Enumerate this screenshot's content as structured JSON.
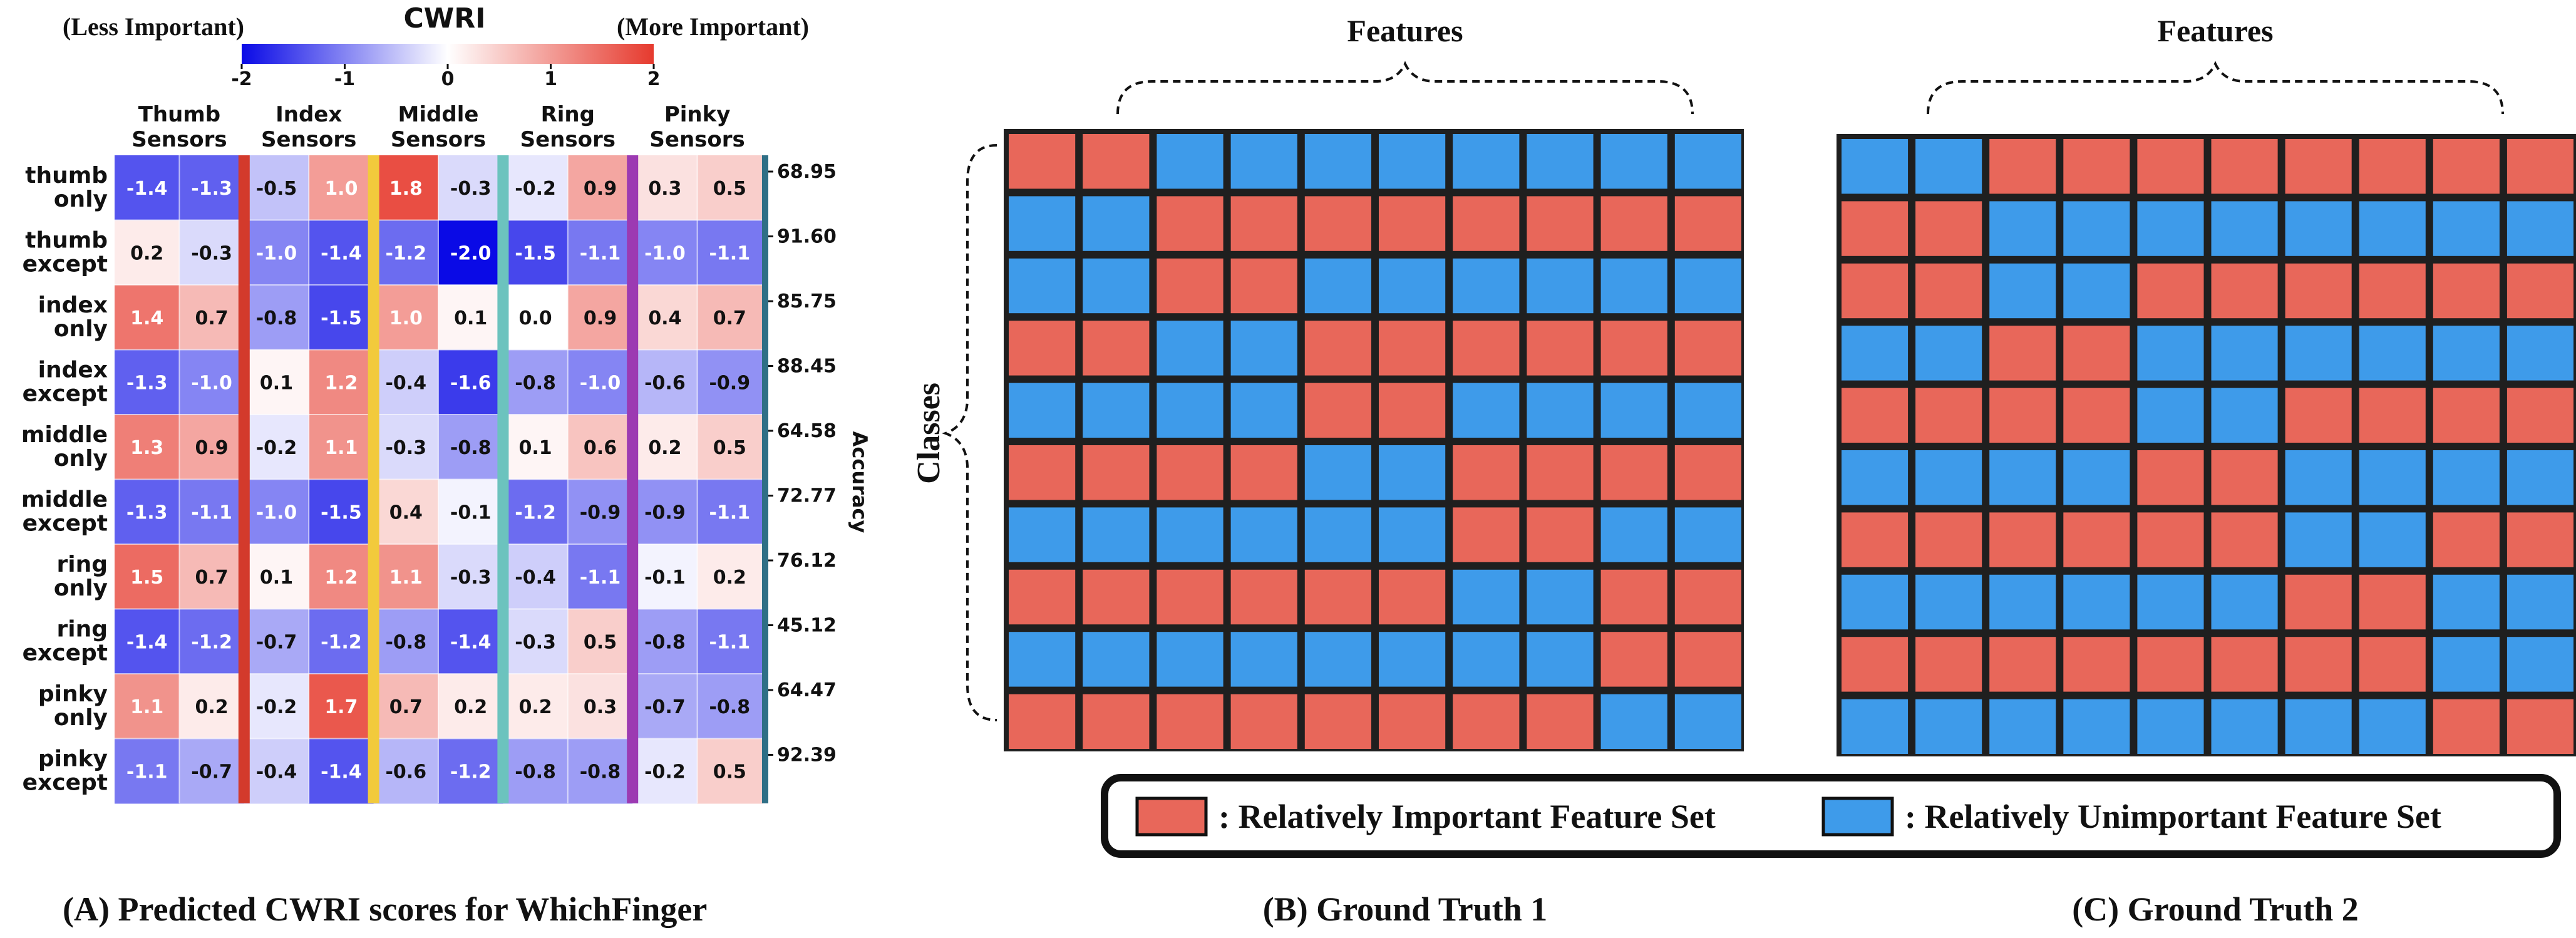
{
  "colors": {
    "important": "#E8675A",
    "unimportant": "#3E9BEA",
    "grid_border": "#1f1f1f",
    "cmap_low": "#0A0AE6",
    "cmap_mid": "#FFFFFF",
    "cmap_high": "#E63A2E",
    "sensor_strips": [
      "#D33A2C",
      "#F2CA3C",
      "#6CC3BE",
      "#9C3AB2"
    ],
    "accuracy_strip": "#2F6F86"
  },
  "panel_a": {
    "caption": "(A) Predicted CWRI scores for WhichFinger",
    "colorbar": {
      "title": "CWRI",
      "left_label": "(Less Important)",
      "right_label": "(More Important)",
      "ticks": [
        "-2",
        "-1",
        "0",
        "1",
        "2"
      ],
      "range": [
        -2,
        2
      ]
    },
    "accuracy_label": "Accuracy"
  },
  "panel_b": {
    "caption": "(B) Ground Truth 1",
    "top_label": "Features",
    "left_label": "Classes"
  },
  "panel_c": {
    "caption": "(C) Ground Truth 2",
    "top_label": "Features"
  },
  "legend": {
    "important": ": Relatively Important Feature Set",
    "unimportant": ": Relatively Unimportant Feature Set"
  },
  "chart_data": [
    {
      "type": "heatmap",
      "title": "CWRI",
      "column_groups": [
        [
          "Thumb",
          "Sensors"
        ],
        [
          "Index",
          "Sensors"
        ],
        [
          "Middle",
          "Sensors"
        ],
        [
          "Ring",
          "Sensors"
        ],
        [
          "Pinky",
          "Sensors"
        ]
      ],
      "columns_per_group": 2,
      "rows": [
        [
          "thumb",
          "only"
        ],
        [
          "thumb",
          "except"
        ],
        [
          "index",
          "only"
        ],
        [
          "index",
          "except"
        ],
        [
          "middle",
          "only"
        ],
        [
          "middle",
          "except"
        ],
        [
          "ring",
          "only"
        ],
        [
          "ring",
          "except"
        ],
        [
          "pinky",
          "only"
        ],
        [
          "pinky",
          "except"
        ]
      ],
      "values": [
        [
          -1.4,
          -1.3,
          -0.5,
          1.0,
          1.8,
          -0.3,
          -0.2,
          0.9,
          0.3,
          0.5
        ],
        [
          0.2,
          -0.3,
          -1.0,
          -1.4,
          -1.2,
          -2.0,
          -1.5,
          -1.1,
          -1.0,
          -1.1
        ],
        [
          1.4,
          0.7,
          -0.8,
          -1.5,
          1.0,
          0.1,
          0.0,
          0.9,
          0.4,
          0.7
        ],
        [
          -1.3,
          -1.0,
          0.1,
          1.2,
          -0.4,
          -1.6,
          -0.8,
          -1.0,
          -0.6,
          -0.9
        ],
        [
          1.3,
          0.9,
          -0.2,
          1.1,
          -0.3,
          -0.8,
          0.1,
          0.6,
          0.2,
          0.5
        ],
        [
          -1.3,
          -1.1,
          -1.0,
          -1.5,
          0.4,
          -0.1,
          -1.2,
          -0.9,
          -0.9,
          -1.1
        ],
        [
          1.5,
          0.7,
          0.1,
          1.2,
          1.1,
          -0.3,
          -0.4,
          -1.1,
          -0.1,
          0.2
        ],
        [
          -1.4,
          -1.2,
          -0.7,
          -1.2,
          -0.8,
          -1.4,
          -0.3,
          0.5,
          -0.8,
          -1.1
        ],
        [
          1.1,
          0.2,
          -0.2,
          1.7,
          0.7,
          0.2,
          0.2,
          0.3,
          -0.7,
          -0.8
        ],
        [
          -1.1,
          -0.7,
          -0.4,
          -1.4,
          -0.6,
          -1.2,
          -0.8,
          -0.8,
          -0.2,
          0.5
        ]
      ],
      "accuracy": [
        "68.95",
        "91.60",
        "85.75",
        "88.45",
        "64.58",
        "72.77",
        "76.12",
        "45.12",
        "64.47",
        "92.39"
      ]
    },
    {
      "type": "heatmap",
      "title": "(B) Ground Truth 1",
      "xlabel": "Features",
      "ylabel": "Classes",
      "legend": [
        "Relatively Important Feature Set",
        "Relatively Unimportant Feature Set"
      ],
      "grid": [
        [
          1,
          1,
          0,
          0,
          0,
          0,
          0,
          0,
          0,
          0
        ],
        [
          0,
          0,
          1,
          1,
          1,
          1,
          1,
          1,
          1,
          1
        ],
        [
          0,
          0,
          1,
          1,
          0,
          0,
          0,
          0,
          0,
          0
        ],
        [
          1,
          1,
          0,
          0,
          1,
          1,
          1,
          1,
          1,
          1
        ],
        [
          0,
          0,
          0,
          0,
          1,
          1,
          0,
          0,
          0,
          0
        ],
        [
          1,
          1,
          1,
          1,
          0,
          0,
          1,
          1,
          1,
          1
        ],
        [
          0,
          0,
          0,
          0,
          0,
          0,
          1,
          1,
          0,
          0
        ],
        [
          1,
          1,
          1,
          1,
          1,
          1,
          0,
          0,
          1,
          1
        ],
        [
          0,
          0,
          0,
          0,
          0,
          0,
          0,
          0,
          1,
          1
        ],
        [
          1,
          1,
          1,
          1,
          1,
          1,
          1,
          1,
          0,
          0
        ]
      ]
    },
    {
      "type": "heatmap",
      "title": "(C) Ground Truth 2",
      "xlabel": "Features",
      "grid": [
        [
          0,
          0,
          1,
          1,
          1,
          1,
          1,
          1,
          1,
          1
        ],
        [
          1,
          1,
          0,
          0,
          0,
          0,
          0,
          0,
          0,
          0
        ],
        [
          1,
          1,
          0,
          0,
          1,
          1,
          1,
          1,
          1,
          1
        ],
        [
          0,
          0,
          1,
          1,
          0,
          0,
          0,
          0,
          0,
          0
        ],
        [
          1,
          1,
          1,
          1,
          0,
          0,
          1,
          1,
          1,
          1
        ],
        [
          0,
          0,
          0,
          0,
          1,
          1,
          0,
          0,
          0,
          0
        ],
        [
          1,
          1,
          1,
          1,
          1,
          1,
          0,
          0,
          1,
          1
        ],
        [
          0,
          0,
          0,
          0,
          0,
          0,
          1,
          1,
          0,
          0
        ],
        [
          1,
          1,
          1,
          1,
          1,
          1,
          1,
          1,
          0,
          0
        ],
        [
          0,
          0,
          0,
          0,
          0,
          0,
          0,
          0,
          1,
          1
        ]
      ]
    }
  ]
}
